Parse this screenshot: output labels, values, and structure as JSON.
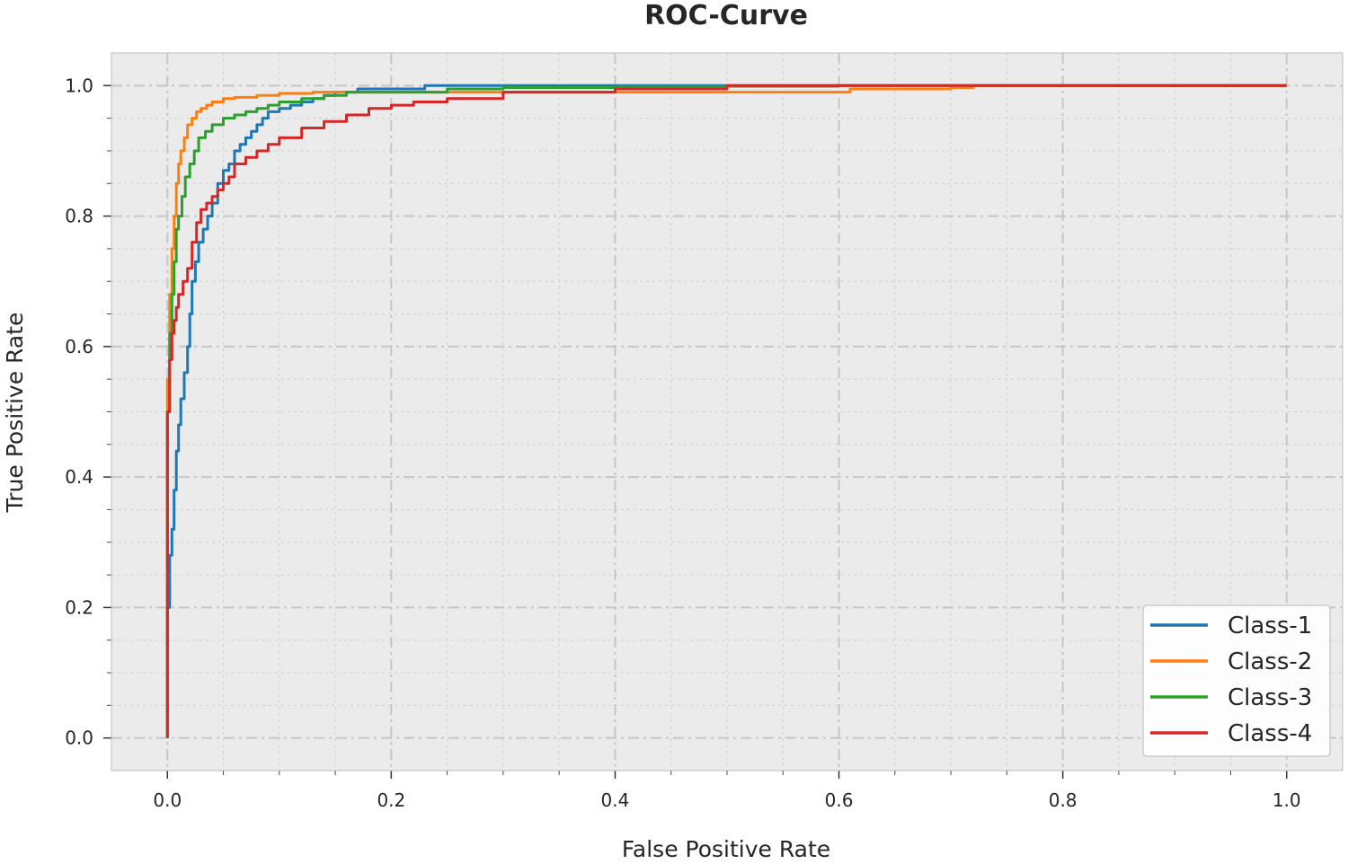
{
  "chart_data": {
    "type": "line",
    "title": "ROC-Curve",
    "xlabel": "False Positive Rate",
    "ylabel": "True Positive Rate",
    "xlim": [
      -0.05,
      1.05
    ],
    "ylim": [
      -0.05,
      1.05
    ],
    "grid": true,
    "legend_position": "lower-right",
    "x_ticks": [
      0.0,
      0.2,
      0.4,
      0.6,
      0.8,
      1.0
    ],
    "x_tick_labels": [
      "0.0",
      "0.2",
      "0.4",
      "0.6",
      "0.8",
      "1.0"
    ],
    "y_ticks": [
      0.0,
      0.2,
      0.4,
      0.6,
      0.8,
      1.0
    ],
    "y_tick_labels": [
      "0.0",
      "0.2",
      "0.4",
      "0.6",
      "0.8",
      "1.0"
    ],
    "series": [
      {
        "name": "Class-1",
        "color": "#1f77b4",
        "x": [
          0.0,
          0.0,
          0.002,
          0.004,
          0.006,
          0.008,
          0.01,
          0.012,
          0.015,
          0.018,
          0.02,
          0.022,
          0.025,
          0.028,
          0.032,
          0.036,
          0.04,
          0.045,
          0.05,
          0.055,
          0.06,
          0.065,
          0.07,
          0.075,
          0.08,
          0.085,
          0.09,
          0.1,
          0.11,
          0.12,
          0.13,
          0.14,
          0.15,
          0.17,
          0.2,
          0.23,
          0.26,
          0.3,
          0.4,
          0.5,
          0.7,
          1.0
        ],
        "y": [
          0.0,
          0.1,
          0.2,
          0.28,
          0.32,
          0.38,
          0.44,
          0.48,
          0.52,
          0.56,
          0.6,
          0.65,
          0.7,
          0.73,
          0.76,
          0.78,
          0.8,
          0.82,
          0.85,
          0.87,
          0.88,
          0.9,
          0.91,
          0.92,
          0.93,
          0.94,
          0.95,
          0.96,
          0.965,
          0.97,
          0.975,
          0.98,
          0.985,
          0.99,
          0.995,
          0.995,
          1.0,
          1.0,
          1.0,
          1.0,
          1.0,
          1.0
        ]
      },
      {
        "name": "Class-2",
        "color": "#ff7f0e",
        "x": [
          0.0,
          0.0,
          0.002,
          0.004,
          0.006,
          0.008,
          0.01,
          0.012,
          0.015,
          0.018,
          0.022,
          0.026,
          0.03,
          0.035,
          0.04,
          0.05,
          0.06,
          0.08,
          0.1,
          0.13,
          0.16,
          0.2,
          0.25,
          0.3,
          0.35,
          0.45,
          0.55,
          0.61,
          0.62,
          0.7,
          0.72,
          0.8,
          0.9,
          1.0
        ],
        "y": [
          0.0,
          0.3,
          0.55,
          0.68,
          0.75,
          0.8,
          0.85,
          0.88,
          0.9,
          0.92,
          0.94,
          0.95,
          0.96,
          0.965,
          0.97,
          0.975,
          0.98,
          0.982,
          0.985,
          0.988,
          0.99,
          0.99,
          0.99,
          0.99,
          0.99,
          0.99,
          0.99,
          0.99,
          0.995,
          0.995,
          0.997,
          1.0,
          1.0,
          1.0
        ]
      },
      {
        "name": "Class-3",
        "color": "#2ca02c",
        "x": [
          0.0,
          0.0,
          0.002,
          0.004,
          0.006,
          0.008,
          0.01,
          0.013,
          0.016,
          0.02,
          0.024,
          0.028,
          0.034,
          0.04,
          0.05,
          0.06,
          0.07,
          0.08,
          0.09,
          0.1,
          0.12,
          0.14,
          0.16,
          0.2,
          0.25,
          0.3,
          0.4,
          0.5,
          0.6,
          0.8,
          1.0
        ],
        "y": [
          0.0,
          0.3,
          0.5,
          0.62,
          0.68,
          0.73,
          0.78,
          0.8,
          0.83,
          0.86,
          0.88,
          0.9,
          0.92,
          0.93,
          0.94,
          0.95,
          0.955,
          0.96,
          0.965,
          0.97,
          0.975,
          0.98,
          0.985,
          0.99,
          0.99,
          0.995,
          0.997,
          0.998,
          0.999,
          1.0,
          1.0
        ]
      },
      {
        "name": "Class-4",
        "color": "#d62728",
        "x": [
          0.0,
          0.0,
          0.002,
          0.004,
          0.006,
          0.008,
          0.01,
          0.014,
          0.018,
          0.022,
          0.026,
          0.03,
          0.035,
          0.04,
          0.045,
          0.05,
          0.055,
          0.06,
          0.07,
          0.08,
          0.09,
          0.1,
          0.12,
          0.14,
          0.16,
          0.18,
          0.2,
          0.22,
          0.25,
          0.3,
          0.4,
          0.5,
          0.6,
          0.8,
          1.0
        ],
        "y": [
          0.0,
          0.25,
          0.5,
          0.58,
          0.62,
          0.64,
          0.66,
          0.68,
          0.7,
          0.72,
          0.76,
          0.79,
          0.81,
          0.82,
          0.83,
          0.84,
          0.85,
          0.86,
          0.88,
          0.89,
          0.9,
          0.91,
          0.92,
          0.935,
          0.945,
          0.955,
          0.965,
          0.97,
          0.975,
          0.98,
          0.99,
          0.995,
          1.0,
          1.0,
          1.0
        ]
      }
    ]
  }
}
